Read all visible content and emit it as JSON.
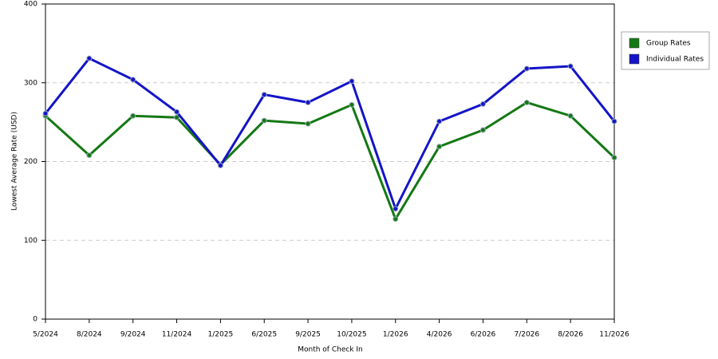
{
  "chart_data": {
    "type": "line",
    "x_label": "Month of Check In",
    "y_label": "Lowest Average Rate (USD)",
    "categories": [
      "5/2024",
      "8/2024",
      "9/2024",
      "11/2024",
      "1/2025",
      "6/2025",
      "9/2025",
      "10/2025",
      "1/2026",
      "4/2026",
      "6/2026",
      "7/2026",
      "8/2026",
      "11/2026"
    ],
    "series": [
      {
        "name": "Group Rates",
        "color": "#147814",
        "values": [
          258,
          208,
          258,
          256,
          196,
          252,
          248,
          272,
          127,
          219,
          240,
          275,
          258,
          205
        ]
      },
      {
        "name": "Individual Rates",
        "color": "#1414c8",
        "values": [
          261,
          331,
          304,
          263,
          195,
          285,
          275,
          302,
          140,
          251,
          273,
          318,
          321,
          251
        ]
      }
    ],
    "ylim": [
      0,
      400
    ],
    "yticks": [
      0,
      100,
      200,
      300,
      400
    ],
    "grid": true,
    "legend": "right"
  }
}
